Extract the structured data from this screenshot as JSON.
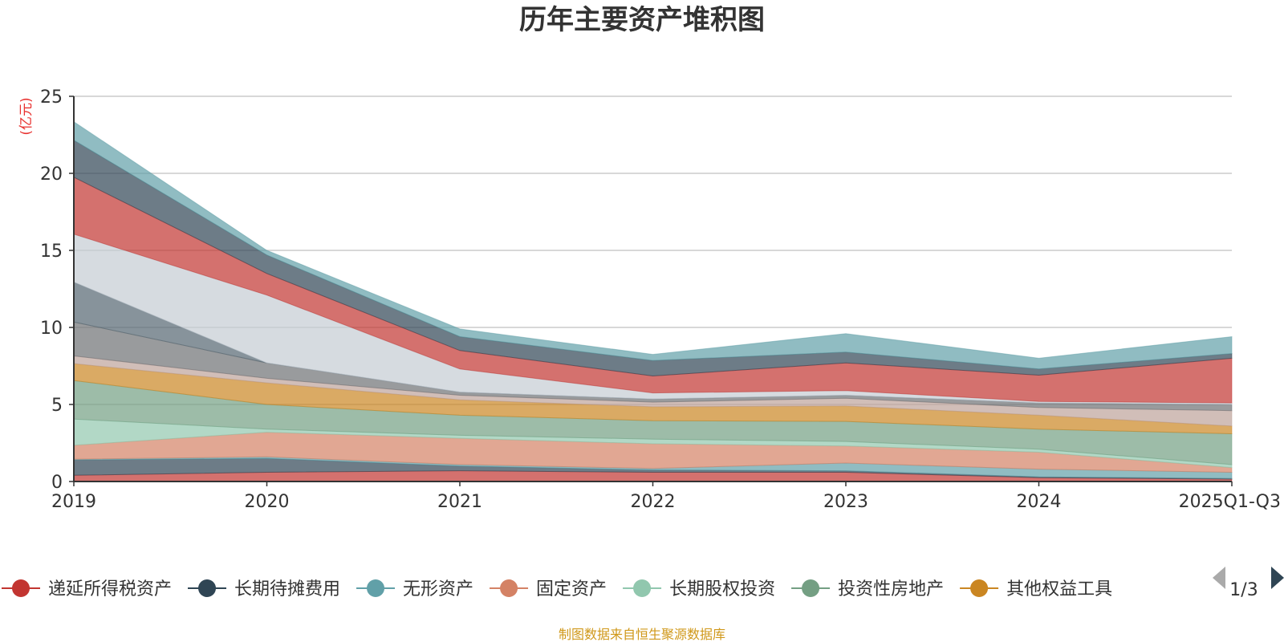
{
  "chart_data": {
    "type": "area",
    "stacked": true,
    "title": "历年主要资产堆积图",
    "ylabel": "(亿元)",
    "xlabel": "",
    "categories": [
      "2019",
      "2020",
      "2021",
      "2022",
      "2023",
      "2024",
      "2025Q1-Q3"
    ],
    "ylim": [
      0,
      25
    ],
    "yticks": [
      0,
      5,
      10,
      15,
      20,
      25
    ],
    "grid": true,
    "series": [
      {
        "name": "递延所得税资产",
        "color": "#c23531",
        "values": [
          0.4,
          0.6,
          0.7,
          0.6,
          0.6,
          0.25,
          0.15
        ],
        "in_legend": true
      },
      {
        "name": "长期待摊费用",
        "color": "#2f4554",
        "values": [
          1.0,
          0.9,
          0.3,
          0.15,
          0.1,
          0.05,
          0.05
        ],
        "in_legend": true
      },
      {
        "name": "无形资产",
        "color": "#61a0a8",
        "values": [
          0.05,
          0.1,
          0.1,
          0.1,
          0.5,
          0.5,
          0.4
        ],
        "in_legend": true
      },
      {
        "name": "固定资产",
        "color": "#d48265",
        "values": [
          0.9,
          1.6,
          1.7,
          1.6,
          1.1,
          1.1,
          0.3
        ],
        "in_legend": true
      },
      {
        "name": "长期股权投资",
        "color": "#91c7ae",
        "values": [
          1.7,
          0.2,
          0.2,
          0.3,
          0.3,
          0.2,
          0.2
        ],
        "in_legend": true
      },
      {
        "name": "投资性房地产",
        "color": "#749f83",
        "values": [
          2.5,
          1.6,
          1.3,
          1.2,
          1.3,
          1.3,
          2.0
        ],
        "in_legend": true
      },
      {
        "name": "其他权益工具",
        "color": "#ca8622",
        "values": [
          1.1,
          1.4,
          1.0,
          0.9,
          1.0,
          0.9,
          0.5
        ],
        "in_legend": true
      },
      {
        "name": "",
        "color": "#bda29a",
        "values": [
          0.5,
          0.3,
          0.3,
          0.3,
          0.5,
          0.5,
          1.0
        ],
        "in_legend": false
      },
      {
        "name": "",
        "color": "#6e7074",
        "values": [
          2.2,
          1.0,
          0.2,
          0.2,
          0.2,
          0.3,
          0.4
        ],
        "in_legend": false
      },
      {
        "name": "",
        "color": "#546570",
        "values": [
          2.6,
          0.0,
          0.0,
          0.0,
          0.0,
          0.0,
          0.0
        ],
        "in_legend": false
      },
      {
        "name": "",
        "color": "#c4ccd3",
        "values": [
          3.1,
          4.4,
          1.5,
          0.4,
          0.3,
          0.1,
          0.1
        ],
        "in_legend": false
      },
      {
        "name": "",
        "color": "#c23531",
        "values": [
          3.7,
          1.4,
          1.2,
          1.1,
          1.8,
          1.7,
          2.9
        ],
        "in_legend": false
      },
      {
        "name": "",
        "color": "#2f4554",
        "values": [
          2.4,
          1.2,
          0.9,
          1.0,
          0.7,
          0.4,
          0.3
        ],
        "in_legend": false
      },
      {
        "name": "",
        "color": "#61a0a8",
        "values": [
          1.2,
          0.3,
          0.5,
          0.4,
          1.2,
          0.7,
          1.1
        ],
        "in_legend": false
      }
    ],
    "legend": {
      "placement": "bottom",
      "page": "1/3"
    }
  },
  "footer": {
    "source": "制图数据来自恒生聚源数据库"
  },
  "icons": {
    "prev": "arrow-left-icon",
    "next": "arrow-right-icon"
  }
}
